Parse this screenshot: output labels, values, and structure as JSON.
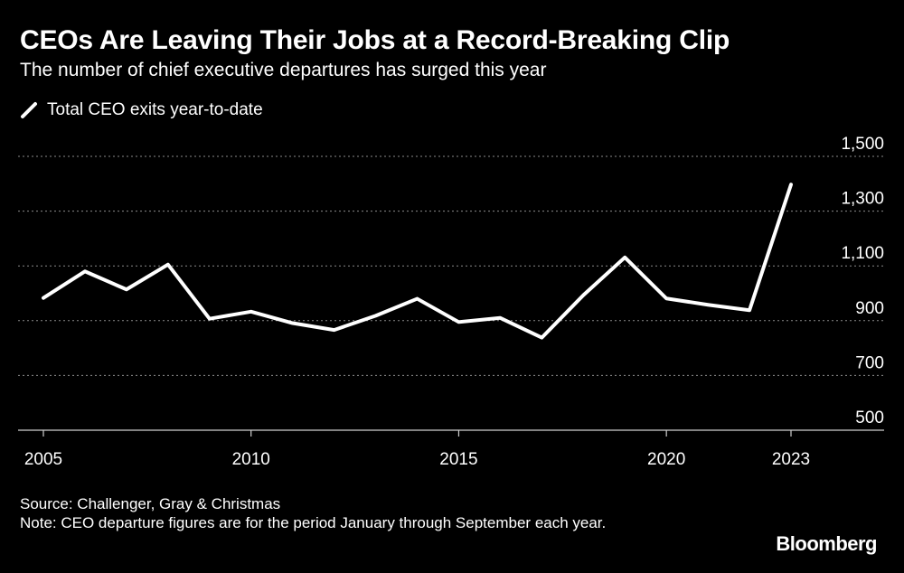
{
  "title": "CEOs Are Leaving Their Jobs at a Record-Breaking Clip",
  "subtitle": "The number of chief executive departures has surged this year",
  "legend": {
    "label": "Total CEO exits year-to-date"
  },
  "footer": {
    "source": "Source: Challenger, Gray & Christmas",
    "note": "Note: CEO departure figures are for the period January through September each year."
  },
  "brand": "Bloomberg",
  "colors": {
    "background": "#000000",
    "line": "#ffffff",
    "grid": "#8a8a8a",
    "text": "#ffffff"
  },
  "chart_data": {
    "type": "line",
    "title": "CEOs Are Leaving Their Jobs at a Record-Breaking Clip",
    "subtitle": "The number of chief executive departures has surged this year",
    "xlabel": "",
    "ylabel": "",
    "x": [
      2005,
      2006,
      2007,
      2008,
      2009,
      2010,
      2011,
      2012,
      2013,
      2014,
      2015,
      2016,
      2017,
      2018,
      2019,
      2020,
      2021,
      2022,
      2023
    ],
    "series": [
      {
        "name": "Total CEO exits year-to-date",
        "values": [
          983,
          1080,
          1014,
          1105,
          907,
          933,
          891,
          866,
          918,
          980,
          895,
          910,
          838,
          993,
          1131,
          981,
          958,
          938,
          1397
        ]
      }
    ],
    "x_ticks": [
      {
        "value": 2005,
        "label": "2005"
      },
      {
        "value": 2010,
        "label": "2010"
      },
      {
        "value": 2015,
        "label": "2015"
      },
      {
        "value": 2020,
        "label": "2020"
      },
      {
        "value": 2023,
        "label": "2023"
      }
    ],
    "y_ticks": [
      {
        "value": 500,
        "label": "500"
      },
      {
        "value": 700,
        "label": "700"
      },
      {
        "value": 900,
        "label": "900"
      },
      {
        "value": 1100,
        "label": "1,100"
      },
      {
        "value": 1300,
        "label": "1,300"
      },
      {
        "value": 1500,
        "label": "1,500"
      }
    ],
    "ylim": [
      500,
      1500
    ],
    "xlim": [
      2005,
      2023
    ],
    "grid": true,
    "y_axis_side": "right",
    "legend_position": "top-left"
  }
}
